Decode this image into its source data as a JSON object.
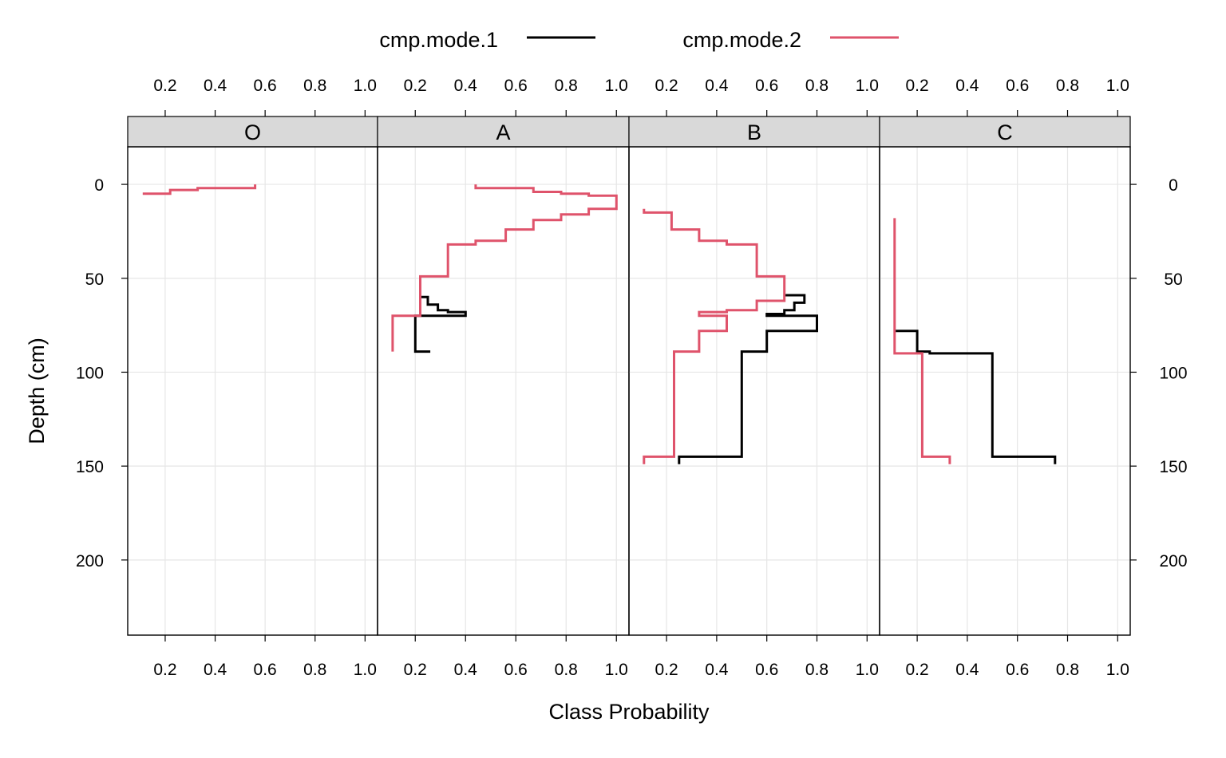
{
  "chart_data": {
    "type": "line",
    "xlabel": "Class Probability",
    "ylabel": "Depth (cm)",
    "xlim": [
      0.05,
      1.05
    ],
    "ylim": [
      240,
      -20
    ],
    "x_ticks": [
      0.2,
      0.4,
      0.6,
      0.8,
      1.0
    ],
    "x_tick_labels": [
      "0.2",
      "0.4",
      "0.6",
      "0.8",
      "1.0"
    ],
    "y_ticks": [
      0,
      50,
      100,
      150,
      200
    ],
    "y_tick_labels": [
      "0",
      "50",
      "100",
      "150",
      "200"
    ],
    "grid": true,
    "legend_position": "top",
    "legend": [
      {
        "name": "cmp.mode.1",
        "color": "#000000"
      },
      {
        "name": "cmp.mode.2",
        "color": "#DF536B"
      }
    ],
    "panels": [
      {
        "label": "O",
        "series": [
          {
            "name": "cmp.mode.2",
            "color": "#DF536B",
            "points": [
              [
                0.56,
                0
              ],
              [
                0.56,
                2
              ],
              [
                0.33,
                2
              ],
              [
                0.33,
                3
              ],
              [
                0.22,
                3
              ],
              [
                0.22,
                5
              ],
              [
                0.11,
                5
              ]
            ]
          }
        ]
      },
      {
        "label": "A",
        "series": [
          {
            "name": "cmp.mode.1",
            "color": "#000000",
            "points": [
              [
                0.22,
                58
              ],
              [
                0.22,
                60
              ],
              [
                0.25,
                60
              ],
              [
                0.25,
                64
              ],
              [
                0.29,
                64
              ],
              [
                0.29,
                67
              ],
              [
                0.33,
                67
              ],
              [
                0.33,
                68
              ],
              [
                0.4,
                68
              ],
              [
                0.4,
                70
              ],
              [
                0.2,
                70
              ],
              [
                0.2,
                89
              ],
              [
                0.26,
                89
              ]
            ]
          },
          {
            "name": "cmp.mode.2",
            "color": "#DF536B",
            "points": [
              [
                0.44,
                0
              ],
              [
                0.44,
                2
              ],
              [
                0.67,
                2
              ],
              [
                0.67,
                4
              ],
              [
                0.78,
                4
              ],
              [
                0.78,
                5
              ],
              [
                0.89,
                5
              ],
              [
                0.89,
                6
              ],
              [
                1.0,
                6
              ],
              [
                1.0,
                13
              ],
              [
                0.89,
                13
              ],
              [
                0.89,
                16
              ],
              [
                0.78,
                16
              ],
              [
                0.78,
                19
              ],
              [
                0.67,
                19
              ],
              [
                0.67,
                24
              ],
              [
                0.56,
                24
              ],
              [
                0.56,
                30
              ],
              [
                0.44,
                30
              ],
              [
                0.44,
                32
              ],
              [
                0.33,
                32
              ],
              [
                0.33,
                49
              ],
              [
                0.22,
                49
              ],
              [
                0.22,
                70
              ],
              [
                0.11,
                70
              ],
              [
                0.11,
                89
              ]
            ]
          }
        ]
      },
      {
        "label": "B",
        "series": [
          {
            "name": "cmp.mode.1",
            "color": "#000000",
            "points": [
              [
                0.67,
                59
              ],
              [
                0.75,
                59
              ],
              [
                0.75,
                63
              ],
              [
                0.71,
                63
              ],
              [
                0.71,
                67
              ],
              [
                0.67,
                67
              ],
              [
                0.67,
                69
              ],
              [
                0.6,
                69
              ],
              [
                0.6,
                70
              ],
              [
                0.8,
                70
              ],
              [
                0.8,
                78
              ],
              [
                0.6,
                78
              ],
              [
                0.6,
                89
              ],
              [
                0.5,
                89
              ],
              [
                0.5,
                145
              ],
              [
                0.25,
                145
              ],
              [
                0.25,
                149
              ]
            ]
          },
          {
            "name": "cmp.mode.2",
            "color": "#DF536B",
            "points": [
              [
                0.11,
                13
              ],
              [
                0.11,
                15
              ],
              [
                0.22,
                15
              ],
              [
                0.22,
                24
              ],
              [
                0.33,
                24
              ],
              [
                0.33,
                30
              ],
              [
                0.44,
                30
              ],
              [
                0.44,
                32
              ],
              [
                0.56,
                32
              ],
              [
                0.56,
                49
              ],
              [
                0.67,
                49
              ],
              [
                0.67,
                62
              ],
              [
                0.56,
                62
              ],
              [
                0.56,
                67
              ],
              [
                0.44,
                67
              ],
              [
                0.44,
                68
              ],
              [
                0.33,
                68
              ],
              [
                0.33,
                70
              ],
              [
                0.44,
                70
              ],
              [
                0.44,
                78
              ],
              [
                0.33,
                78
              ],
              [
                0.33,
                89
              ],
              [
                0.23,
                89
              ],
              [
                0.23,
                145
              ],
              [
                0.11,
                145
              ],
              [
                0.11,
                149
              ]
            ]
          }
        ]
      },
      {
        "label": "C",
        "series": [
          {
            "name": "cmp.mode.1",
            "color": "#000000",
            "points": [
              [
                0.11,
                78
              ],
              [
                0.2,
                78
              ],
              [
                0.2,
                89
              ],
              [
                0.25,
                89
              ],
              [
                0.25,
                90
              ],
              [
                0.5,
                90
              ],
              [
                0.5,
                145
              ],
              [
                0.75,
                145
              ],
              [
                0.75,
                149
              ]
            ]
          },
          {
            "name": "cmp.mode.2",
            "color": "#DF536B",
            "points": [
              [
                0.11,
                18
              ],
              [
                0.11,
                90
              ],
              [
                0.22,
                90
              ],
              [
                0.22,
                145
              ],
              [
                0.33,
                145
              ],
              [
                0.33,
                149
              ]
            ]
          }
        ]
      }
    ]
  }
}
